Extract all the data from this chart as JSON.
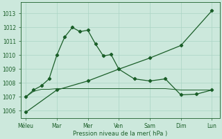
{
  "background_color": "#cce8dc",
  "grid_color": "#aad4c4",
  "line_color": "#1a5e28",
  "xlabel": "Pression niveau de la mer( hPa )",
  "ylim": [
    1005.5,
    1013.8
  ],
  "yticks": [
    1006,
    1007,
    1008,
    1009,
    1010,
    1011,
    1012,
    1013
  ],
  "x_labels": [
    "Méleu",
    "Mar",
    "Mer",
    "Ven",
    "Sam",
    "Dim",
    "Lun"
  ],
  "x_positions": [
    0,
    2,
    4,
    6,
    8,
    10,
    12
  ],
  "xlim": [
    -0.3,
    12.5
  ],
  "line1_x": [
    0,
    0.5,
    1,
    1.5,
    2,
    2.5,
    3,
    3.5,
    4,
    4.5,
    5,
    5.5,
    6,
    7,
    8,
    9,
    10,
    11,
    12
  ],
  "line1_y": [
    1007.0,
    1007.5,
    1007.8,
    1008.3,
    1010.0,
    1011.3,
    1012.0,
    1011.7,
    1011.8,
    1010.8,
    1009.95,
    1010.05,
    1009.0,
    1008.3,
    1008.15,
    1008.3,
    1007.15,
    1007.2,
    1007.5
  ],
  "line2_x": [
    0,
    0.5,
    1,
    1.5,
    2,
    2.5,
    3,
    3.5,
    4,
    4.5,
    5,
    5.5,
    6,
    6.5,
    7,
    7.5,
    8,
    8.5,
    9,
    10,
    11,
    12
  ],
  "line2_y": [
    1007.0,
    1007.4,
    1007.55,
    1007.55,
    1007.6,
    1007.6,
    1007.6,
    1007.6,
    1007.6,
    1007.6,
    1007.6,
    1007.6,
    1007.6,
    1007.6,
    1007.6,
    1007.6,
    1007.6,
    1007.6,
    1007.6,
    1007.5,
    1007.5,
    1007.5
  ],
  "line3_x": [
    0,
    2,
    4,
    6,
    8,
    10,
    12
  ],
  "line3_y": [
    1005.9,
    1007.5,
    1008.15,
    1009.0,
    1009.8,
    1010.7,
    1013.2
  ],
  "line1_markers_x": [
    0,
    0.5,
    1,
    1.5,
    2,
    2.5,
    3,
    3.5,
    4,
    4.5,
    5,
    5.5,
    6,
    7,
    8,
    9,
    10,
    11,
    12
  ],
  "line1_markers_y": [
    1007.0,
    1007.5,
    1007.8,
    1008.3,
    1010.0,
    1011.3,
    1012.0,
    1011.7,
    1011.8,
    1010.8,
    1009.95,
    1010.05,
    1009.0,
    1008.3,
    1008.15,
    1008.3,
    1007.15,
    1007.2,
    1007.5
  ],
  "line3_markers_x": [
    0,
    2,
    4,
    6,
    8,
    10,
    12
  ],
  "line3_markers_y": [
    1005.9,
    1007.5,
    1008.15,
    1009.0,
    1009.8,
    1010.7,
    1013.2
  ],
  "title_fontsize": 6,
  "tick_fontsize": 5.5,
  "xlabel_fontsize": 6
}
